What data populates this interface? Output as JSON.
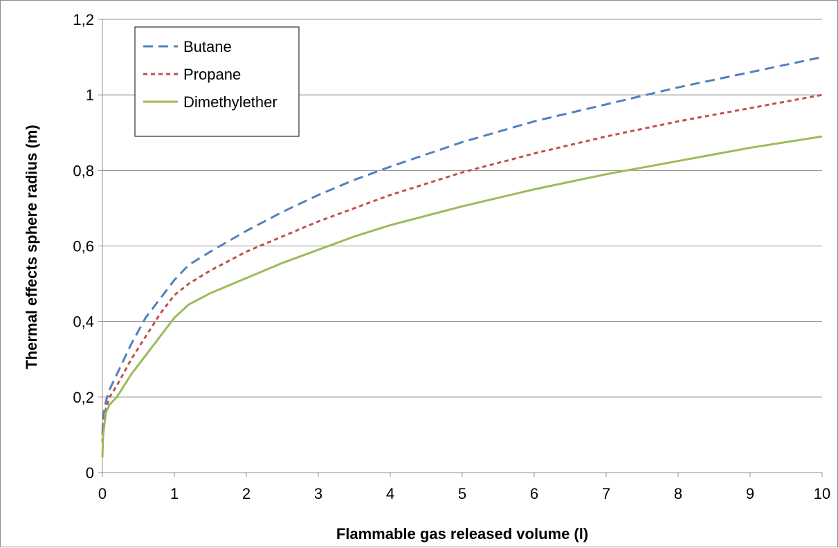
{
  "chart_data": {
    "type": "line",
    "title": "",
    "xlabel": "Flammable gas released volume  (l)",
    "ylabel": "Thermal effects sphere radius (m)",
    "xlim": [
      0,
      10
    ],
    "ylim": [
      0,
      1.2
    ],
    "x_ticks": [
      "0",
      "1",
      "2",
      "3",
      "4",
      "5",
      "6",
      "7",
      "8",
      "9",
      "10"
    ],
    "y_ticks": [
      "0",
      "0,2",
      "0,4",
      "0,6",
      "0,8",
      "1",
      "1,2"
    ],
    "grid": "horizontal",
    "legend_position": "top-left",
    "series": [
      {
        "name": "Butane",
        "color": "#4f81bd",
        "style": "dashed",
        "x": [
          0,
          0.01,
          0.05,
          0.1,
          0.2,
          0.4,
          0.6,
          0.8,
          1.0,
          1.2,
          1.5,
          2,
          2.5,
          3,
          3.5,
          4,
          5,
          6,
          7,
          8,
          9,
          10
        ],
        "y": [
          0.1,
          0.15,
          0.19,
          0.22,
          0.26,
          0.34,
          0.41,
          0.46,
          0.51,
          0.55,
          0.585,
          0.64,
          0.69,
          0.735,
          0.775,
          0.81,
          0.875,
          0.93,
          0.975,
          1.02,
          1.06,
          1.1
        ]
      },
      {
        "name": "Propane",
        "color": "#c0504d",
        "style": "dotted",
        "x": [
          0,
          0.01,
          0.05,
          0.1,
          0.2,
          0.4,
          0.6,
          0.8,
          1.0,
          1.2,
          1.5,
          2,
          2.5,
          3,
          3.5,
          4,
          5,
          6,
          7,
          8,
          9,
          10
        ],
        "y": [
          0.08,
          0.13,
          0.17,
          0.2,
          0.23,
          0.3,
          0.36,
          0.42,
          0.47,
          0.5,
          0.535,
          0.585,
          0.625,
          0.665,
          0.7,
          0.735,
          0.795,
          0.845,
          0.89,
          0.93,
          0.965,
          1.0
        ]
      },
      {
        "name": "Dimethylether",
        "color": "#9bbb59",
        "style": "solid",
        "x": [
          0,
          0.01,
          0.05,
          0.1,
          0.2,
          0.4,
          0.6,
          0.8,
          1.0,
          1.2,
          1.5,
          2,
          2.5,
          3,
          3.5,
          4,
          5,
          6,
          7,
          8,
          9,
          10
        ],
        "y": [
          0.04,
          0.1,
          0.16,
          0.18,
          0.2,
          0.26,
          0.31,
          0.36,
          0.41,
          0.445,
          0.475,
          0.515,
          0.555,
          0.59,
          0.625,
          0.655,
          0.705,
          0.75,
          0.79,
          0.825,
          0.86,
          0.89
        ]
      }
    ]
  }
}
